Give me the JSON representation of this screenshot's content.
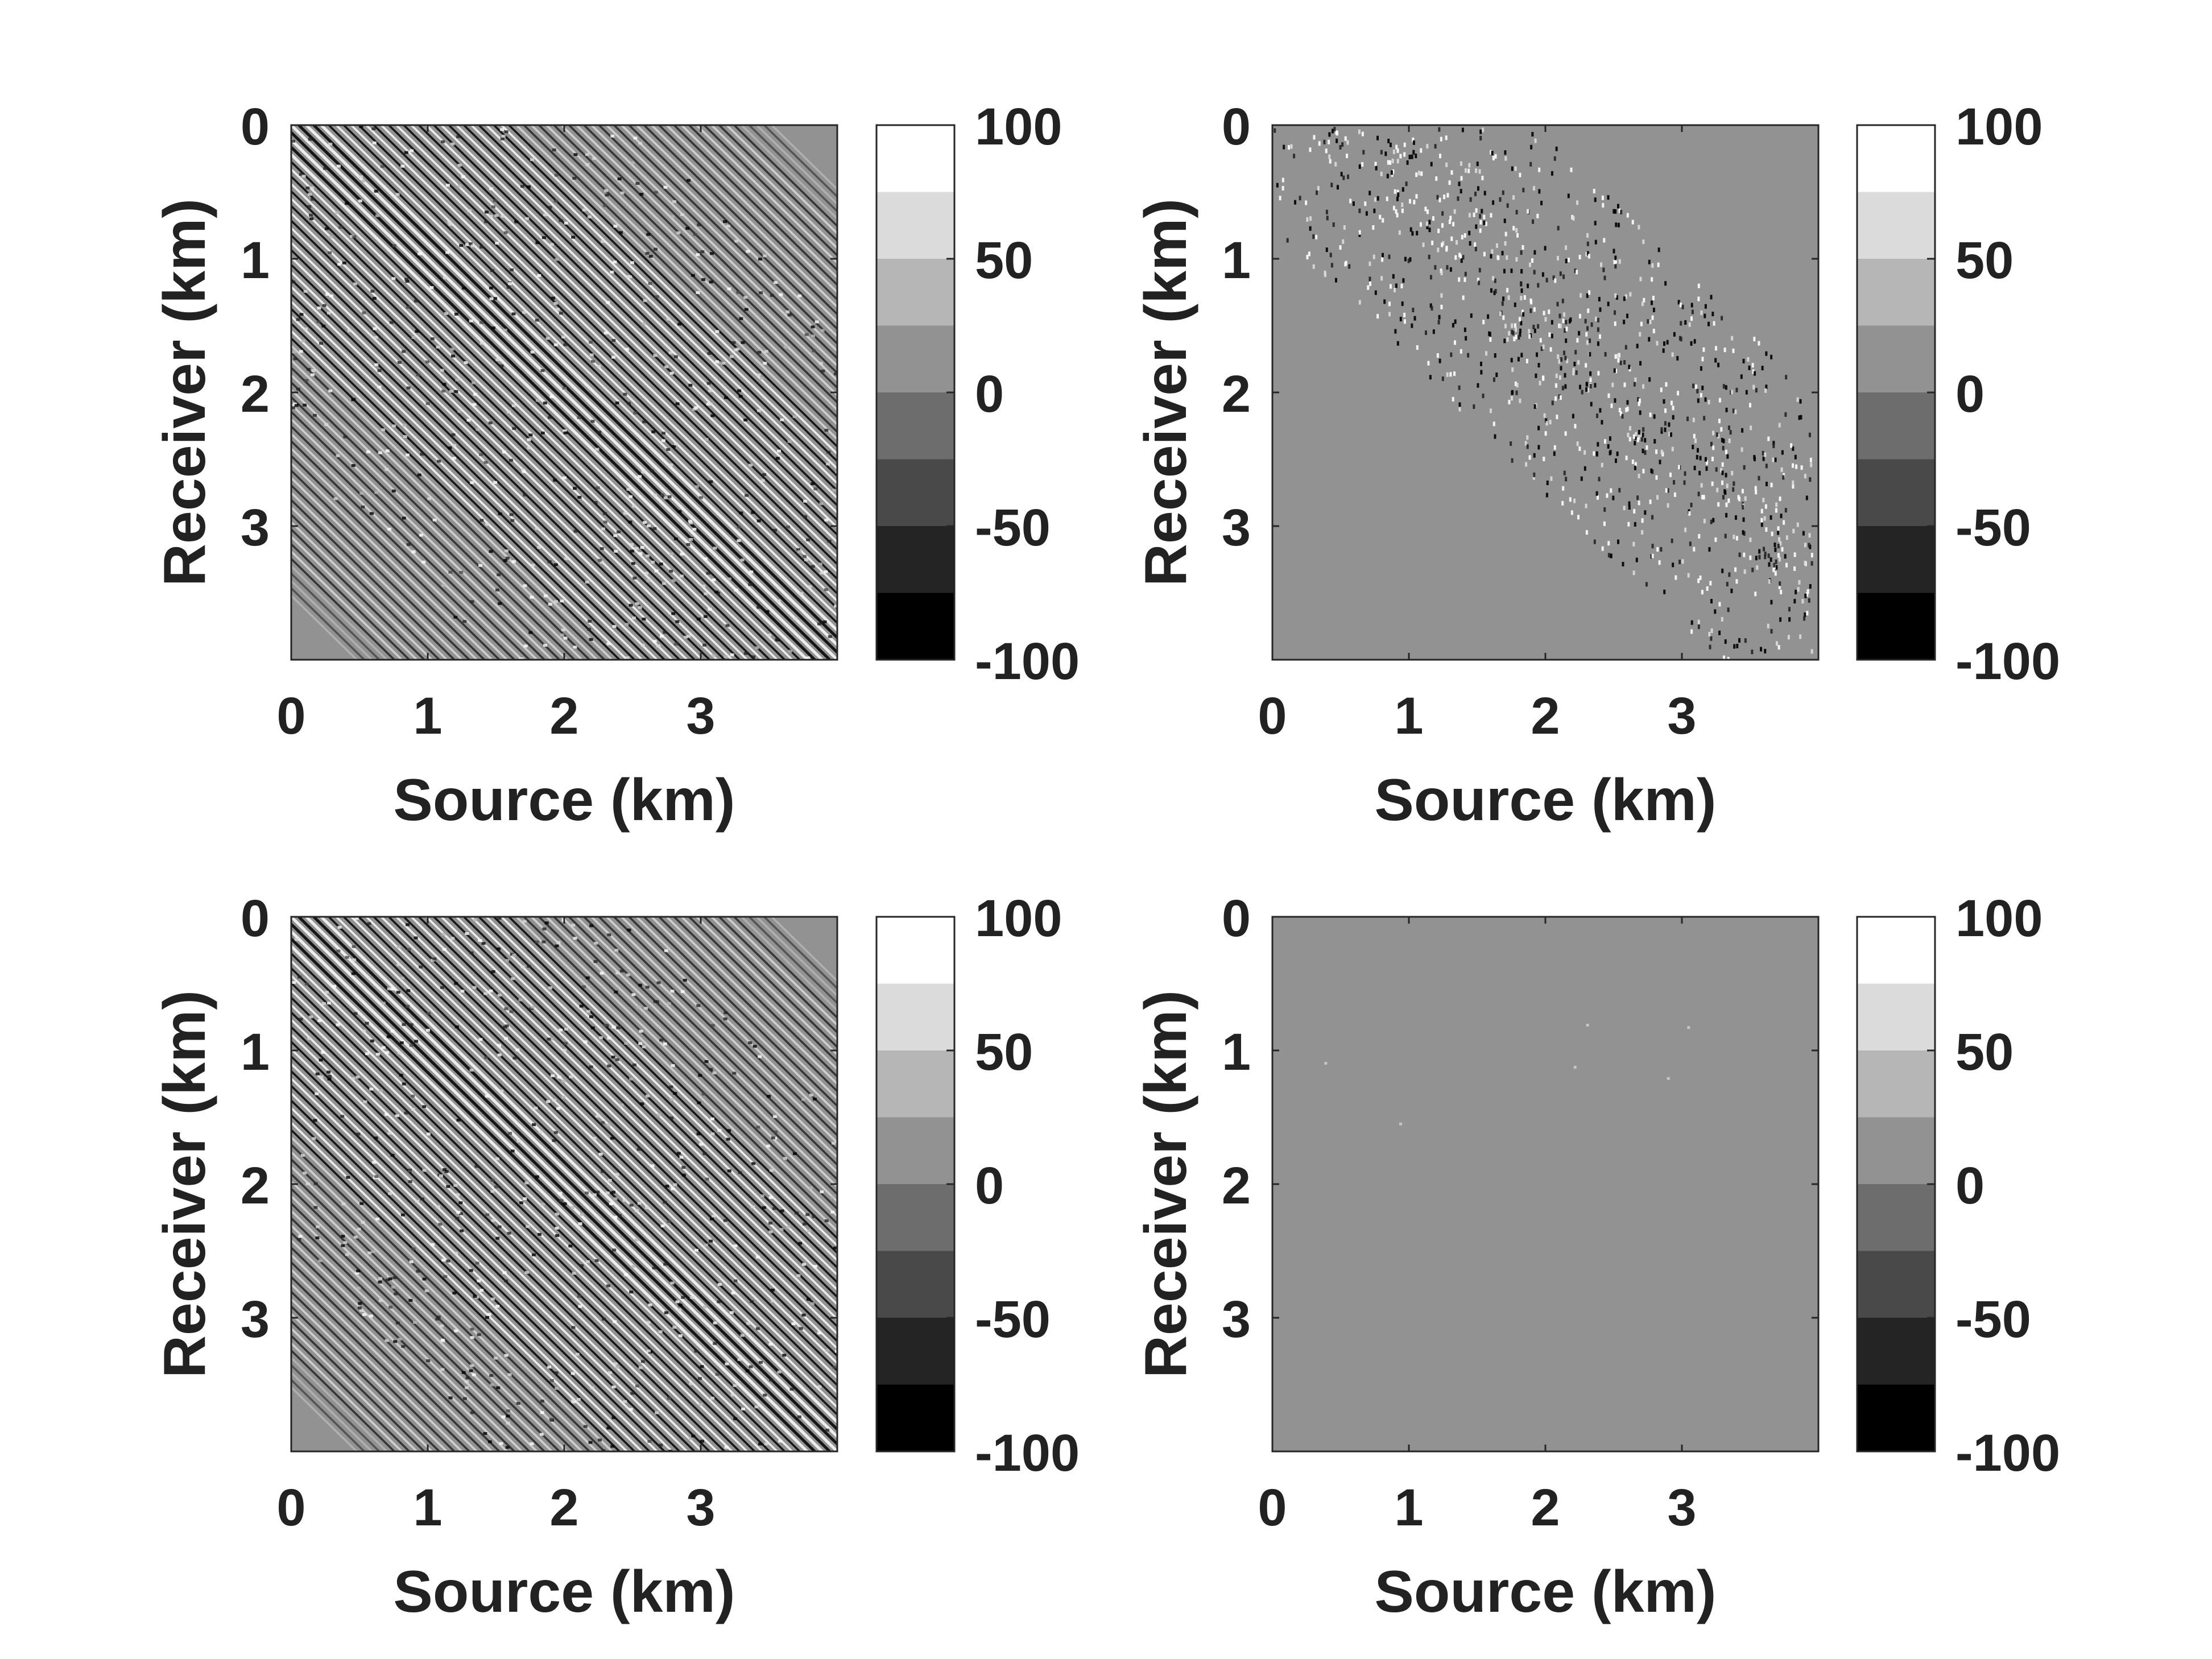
{
  "chart_data": [
    {
      "type": "heatmap",
      "pattern": "dense-diagonal",
      "xlabel": "Source (km)",
      "ylabel": "Receiver (km)",
      "xlim": [
        0,
        4
      ],
      "ylim": [
        0,
        4
      ],
      "y_axis_direction": "reversed",
      "x_ticks": [
        0,
        1,
        2,
        3
      ],
      "y_ticks": [
        0,
        1,
        2,
        3
      ],
      "colormap": "gray",
      "color_range": [
        -100,
        100
      ],
      "colorbar_levels": 8,
      "colorbar_ticks": [
        100,
        50,
        0,
        -50,
        -100
      ]
    },
    {
      "type": "heatmap",
      "pattern": "sparse-diagonal",
      "xlabel": "Source (km)",
      "ylabel": "Receiver (km)",
      "xlim": [
        0,
        4
      ],
      "ylim": [
        0,
        4
      ],
      "y_axis_direction": "reversed",
      "x_ticks": [
        0,
        1,
        2,
        3
      ],
      "y_ticks": [
        0,
        1,
        2,
        3
      ],
      "colormap": "gray",
      "color_range": [
        -100,
        100
      ],
      "colorbar_levels": 8,
      "colorbar_ticks": [
        100,
        50,
        0,
        -50,
        -100
      ]
    },
    {
      "type": "heatmap",
      "pattern": "dense-diagonal",
      "xlabel": "Source (km)",
      "ylabel": "Receiver (km)",
      "xlim": [
        0,
        4
      ],
      "ylim": [
        0,
        4
      ],
      "y_axis_direction": "reversed",
      "x_ticks": [
        0,
        1,
        2,
        3
      ],
      "y_ticks": [
        0,
        1,
        2,
        3
      ],
      "colormap": "gray",
      "color_range": [
        -100,
        100
      ],
      "colorbar_levels": 8,
      "colorbar_ticks": [
        100,
        50,
        0,
        -50,
        -100
      ]
    },
    {
      "type": "heatmap",
      "pattern": "near-zero",
      "xlabel": "Source (km)",
      "ylabel": "Receiver (km)",
      "xlim": [
        0,
        4
      ],
      "ylim": [
        0,
        4
      ],
      "y_axis_direction": "reversed",
      "x_ticks": [
        0,
        1,
        2,
        3
      ],
      "y_ticks": [
        0,
        1,
        2,
        3
      ],
      "colormap": "gray",
      "color_range": [
        -100,
        100
      ],
      "colorbar_levels": 8,
      "colorbar_ticks": [
        100,
        50,
        0,
        -50,
        -100
      ]
    }
  ]
}
